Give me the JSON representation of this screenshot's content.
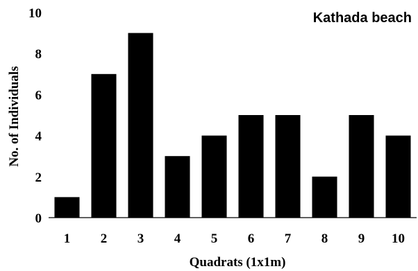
{
  "chart_data": {
    "type": "bar",
    "title": "Kathada beach",
    "xlabel": "Quadrats (1x1m)",
    "ylabel": "No. of Individuals",
    "categories": [
      "1",
      "2",
      "3",
      "4",
      "5",
      "6",
      "7",
      "8",
      "9",
      "10"
    ],
    "values": [
      1,
      7,
      9,
      3,
      4,
      5,
      5,
      2,
      5,
      4
    ],
    "ylim": [
      0,
      10
    ],
    "yticks": [
      "0",
      "2",
      "4",
      "6",
      "8",
      "10"
    ],
    "grid": false,
    "bar_color": "#000000"
  }
}
